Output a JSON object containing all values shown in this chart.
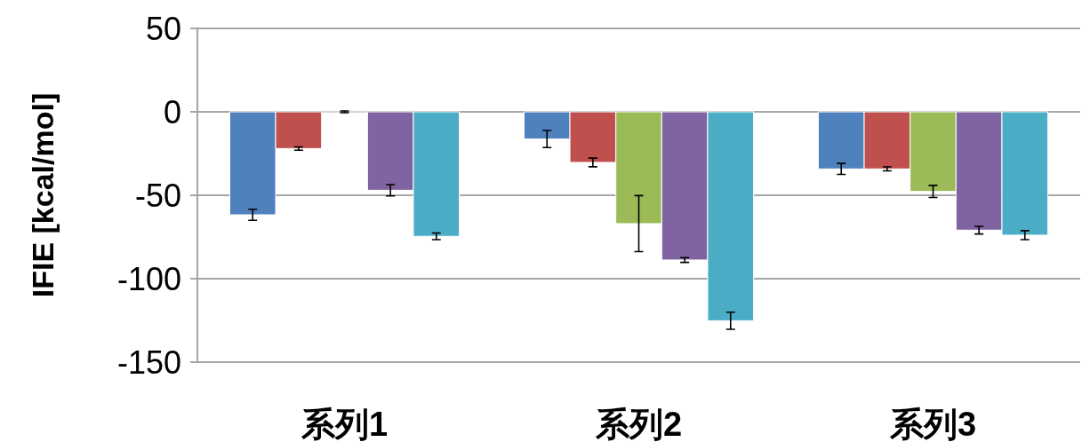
{
  "chart_data": {
    "type": "bar",
    "ylabel": "IFIE [kcal/mol]",
    "categories": [
      "系列1",
      "系列2",
      "系列3"
    ],
    "series": [
      {
        "color": "#4f81bd",
        "values": [
          -61.7,
          -16.3,
          -34.2
        ],
        "errors": [
          3.3,
          5.1,
          3.3
        ]
      },
      {
        "color": "#c0504d",
        "values": [
          -22,
          -30.3,
          -34.2
        ],
        "errors": [
          1,
          2.6,
          1.2
        ]
      },
      {
        "color": "#9bbb59",
        "values": [
          0,
          -67,
          -47.7
        ],
        "errors": [
          0.5,
          16.8,
          3.6
        ]
      },
      {
        "color": "#8064a2",
        "values": [
          -47,
          -88.8,
          -70.9
        ],
        "errors": [
          3.4,
          1.4,
          2.3
        ]
      },
      {
        "color": "#4bacc6",
        "values": [
          -74.6,
          -125.2,
          -73.9
        ],
        "errors": [
          2,
          5.1,
          2.7
        ]
      }
    ],
    "ylim": [
      -150,
      50
    ],
    "yticks": [
      -150,
      -100,
      -50,
      0,
      50
    ],
    "grid": "y"
  }
}
